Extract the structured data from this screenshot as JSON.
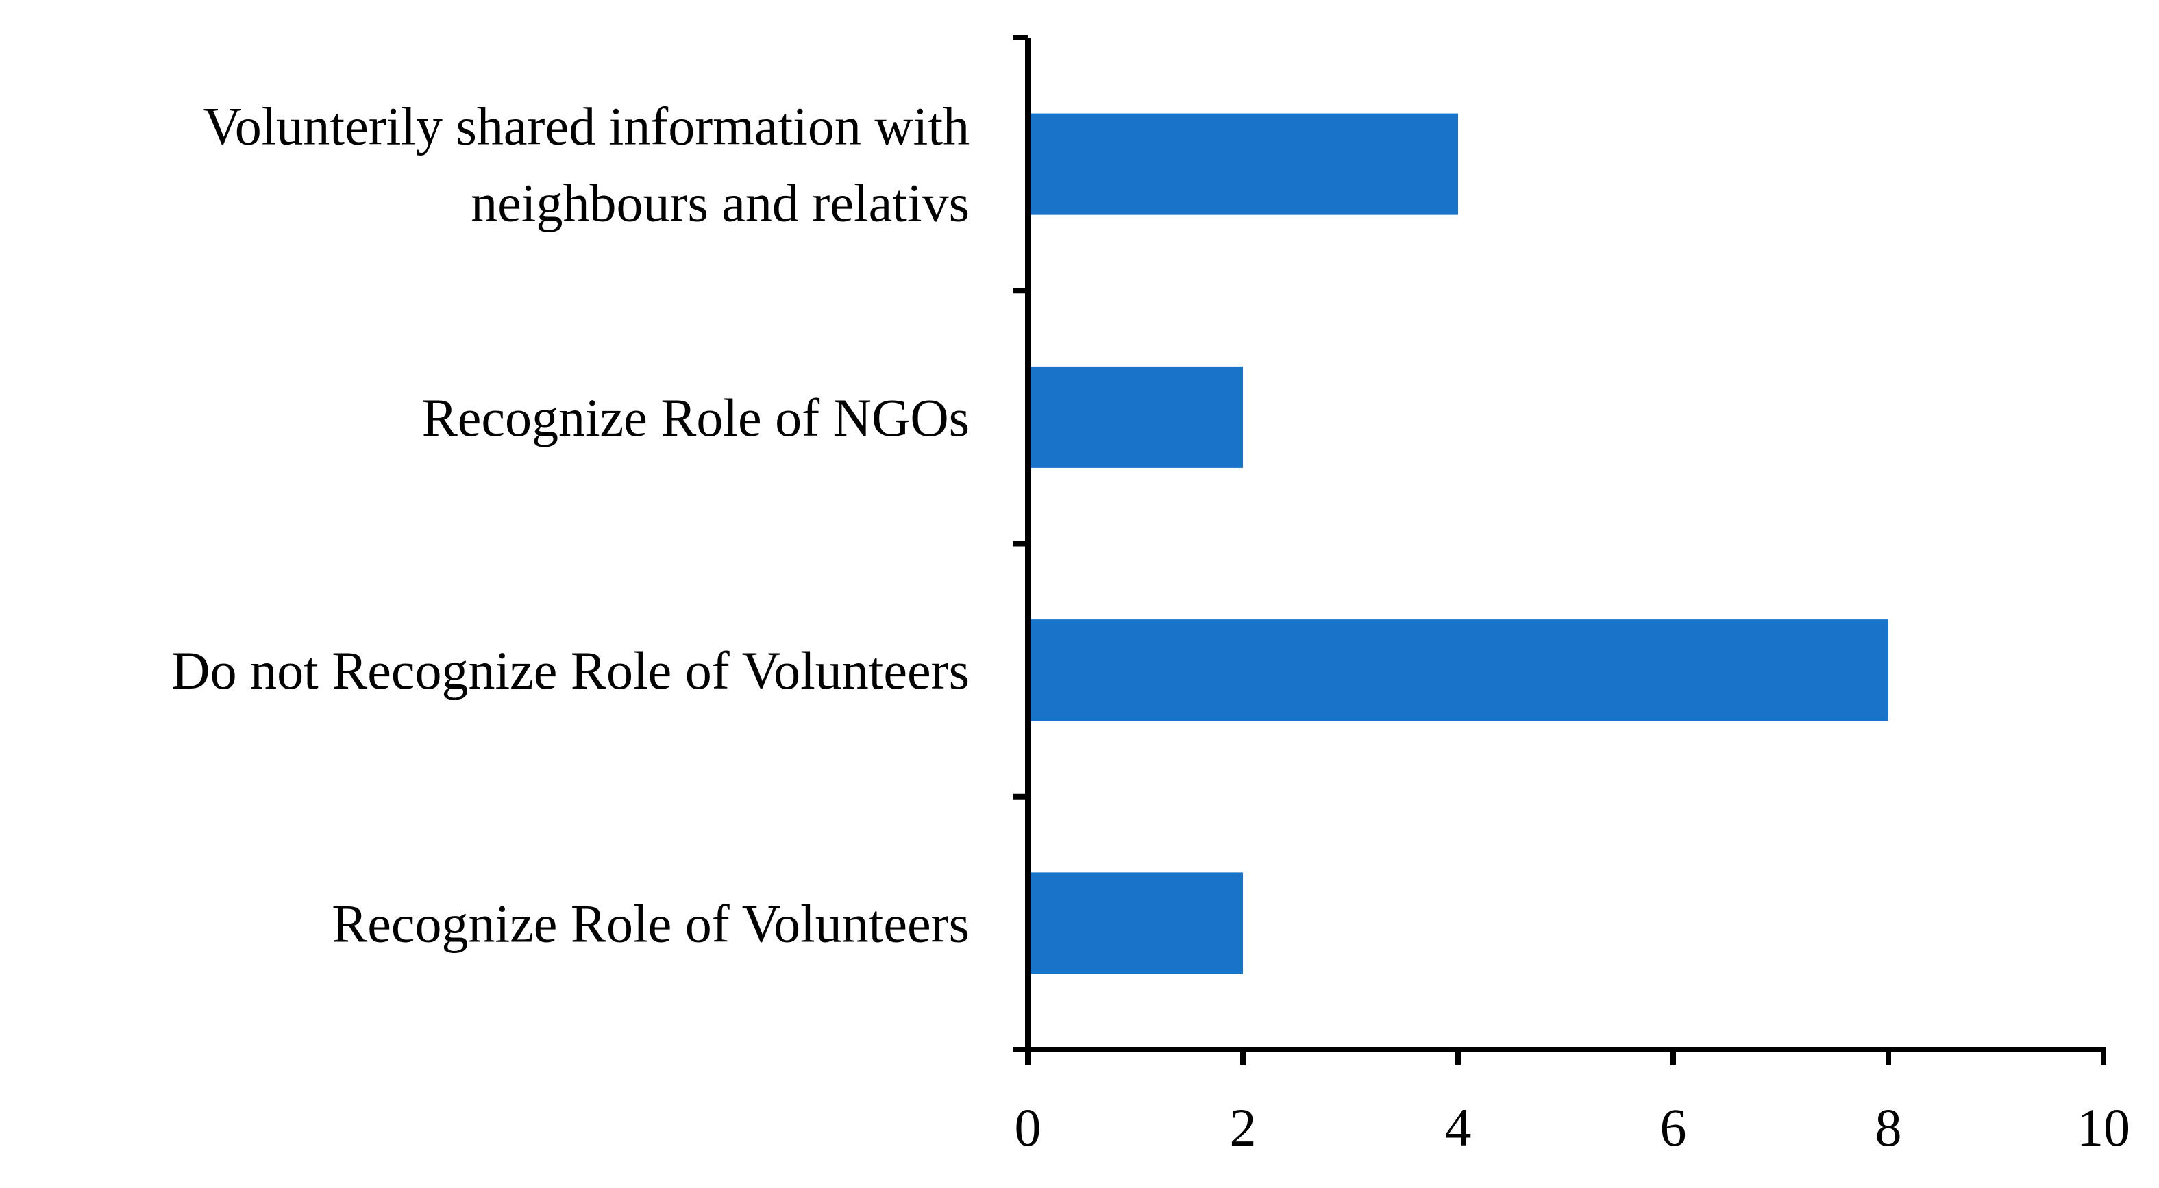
{
  "chart_data": {
    "type": "bar",
    "orientation": "horizontal",
    "title": "",
    "xlabel": "",
    "ylabel": "",
    "categories": [
      [
        "Volunterily shared information with",
        "neighbours and relativs"
      ],
      [
        "Recognize Role of NGOs"
      ],
      [
        "Do not Recognize Role of Volunteers"
      ],
      [
        "Recognize Role of Volunteers"
      ]
    ],
    "values": [
      4,
      2,
      8,
      2
    ],
    "xlim": [
      0,
      10
    ],
    "xticks": [
      0,
      2,
      4,
      6,
      8,
      10
    ],
    "bar_color": "#1874C9",
    "grid": false,
    "legend": "none"
  }
}
